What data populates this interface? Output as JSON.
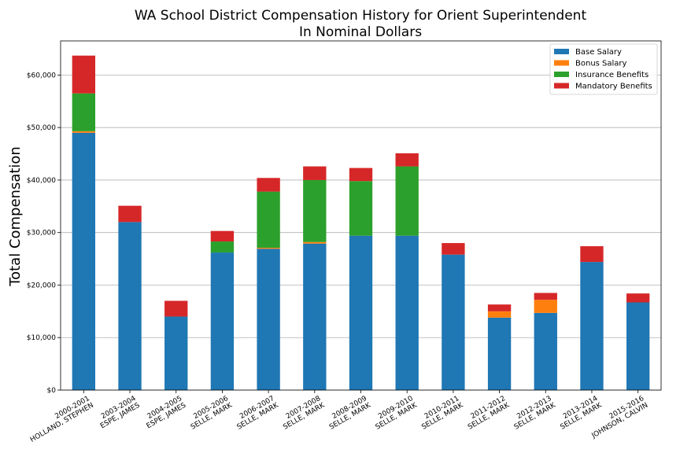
{
  "chart_data": {
    "type": "bar",
    "stacked": true,
    "title": [
      "WA School District Compensation History for Orient Superintendent",
      "In Nominal Dollars"
    ],
    "xlabel": "",
    "ylabel": "Total Compensation",
    "ylim": [
      0,
      66500
    ],
    "yticks": [
      0,
      10000,
      20000,
      30000,
      40000,
      50000,
      60000
    ],
    "yticklabels": [
      "$0",
      "$10,000",
      "$20,000",
      "$30,000",
      "$40,000",
      "$50,000",
      "$60,000"
    ],
    "grid": "horizontal",
    "legend_position": "top-right",
    "categories": [
      [
        "2000-2001",
        "HOLLAND, STEPHEN"
      ],
      [
        "2003-2004",
        "ESPE, JAMES"
      ],
      [
        "2004-2005",
        "ESPE, JAMES"
      ],
      [
        "2005-2006",
        "SELLE, MARK"
      ],
      [
        "2006-2007",
        "SELLE, MARK"
      ],
      [
        "2007-2008",
        "SELLE, MARK"
      ],
      [
        "2008-2009",
        "SELLE, MARK"
      ],
      [
        "2009-2010",
        "SELLE, MARK"
      ],
      [
        "2010-2011",
        "SELLE, MARK"
      ],
      [
        "2011-2012",
        "SELLE, MARK"
      ],
      [
        "2012-2013",
        "SELLE, MARK"
      ],
      [
        "2013-2014",
        "SELLE, MARK"
      ],
      [
        "2015-2016",
        "JOHNSON, CALVIN"
      ]
    ],
    "series": [
      {
        "name": "Base Salary",
        "color": "#1f77b4",
        "values": [
          49000,
          32000,
          14000,
          26200,
          26900,
          27900,
          29400,
          29400,
          25800,
          13800,
          14700,
          24400,
          16700
        ]
      },
      {
        "name": "Bonus Salary",
        "color": "#ff7f0e",
        "values": [
          300,
          0,
          0,
          0,
          200,
          300,
          0,
          0,
          0,
          1200,
          2500,
          0,
          0
        ]
      },
      {
        "name": "Insurance Benefits",
        "color": "#2ca02c",
        "values": [
          7200,
          0,
          0,
          2100,
          10700,
          11800,
          10400,
          13200,
          0,
          0,
          0,
          0,
          0
        ]
      },
      {
        "name": "Mandatory Benefits",
        "color": "#d62728",
        "values": [
          7200,
          3100,
          3000,
          2000,
          2600,
          2600,
          2500,
          2500,
          2200,
          1300,
          1300,
          3000,
          1700
        ]
      }
    ]
  }
}
